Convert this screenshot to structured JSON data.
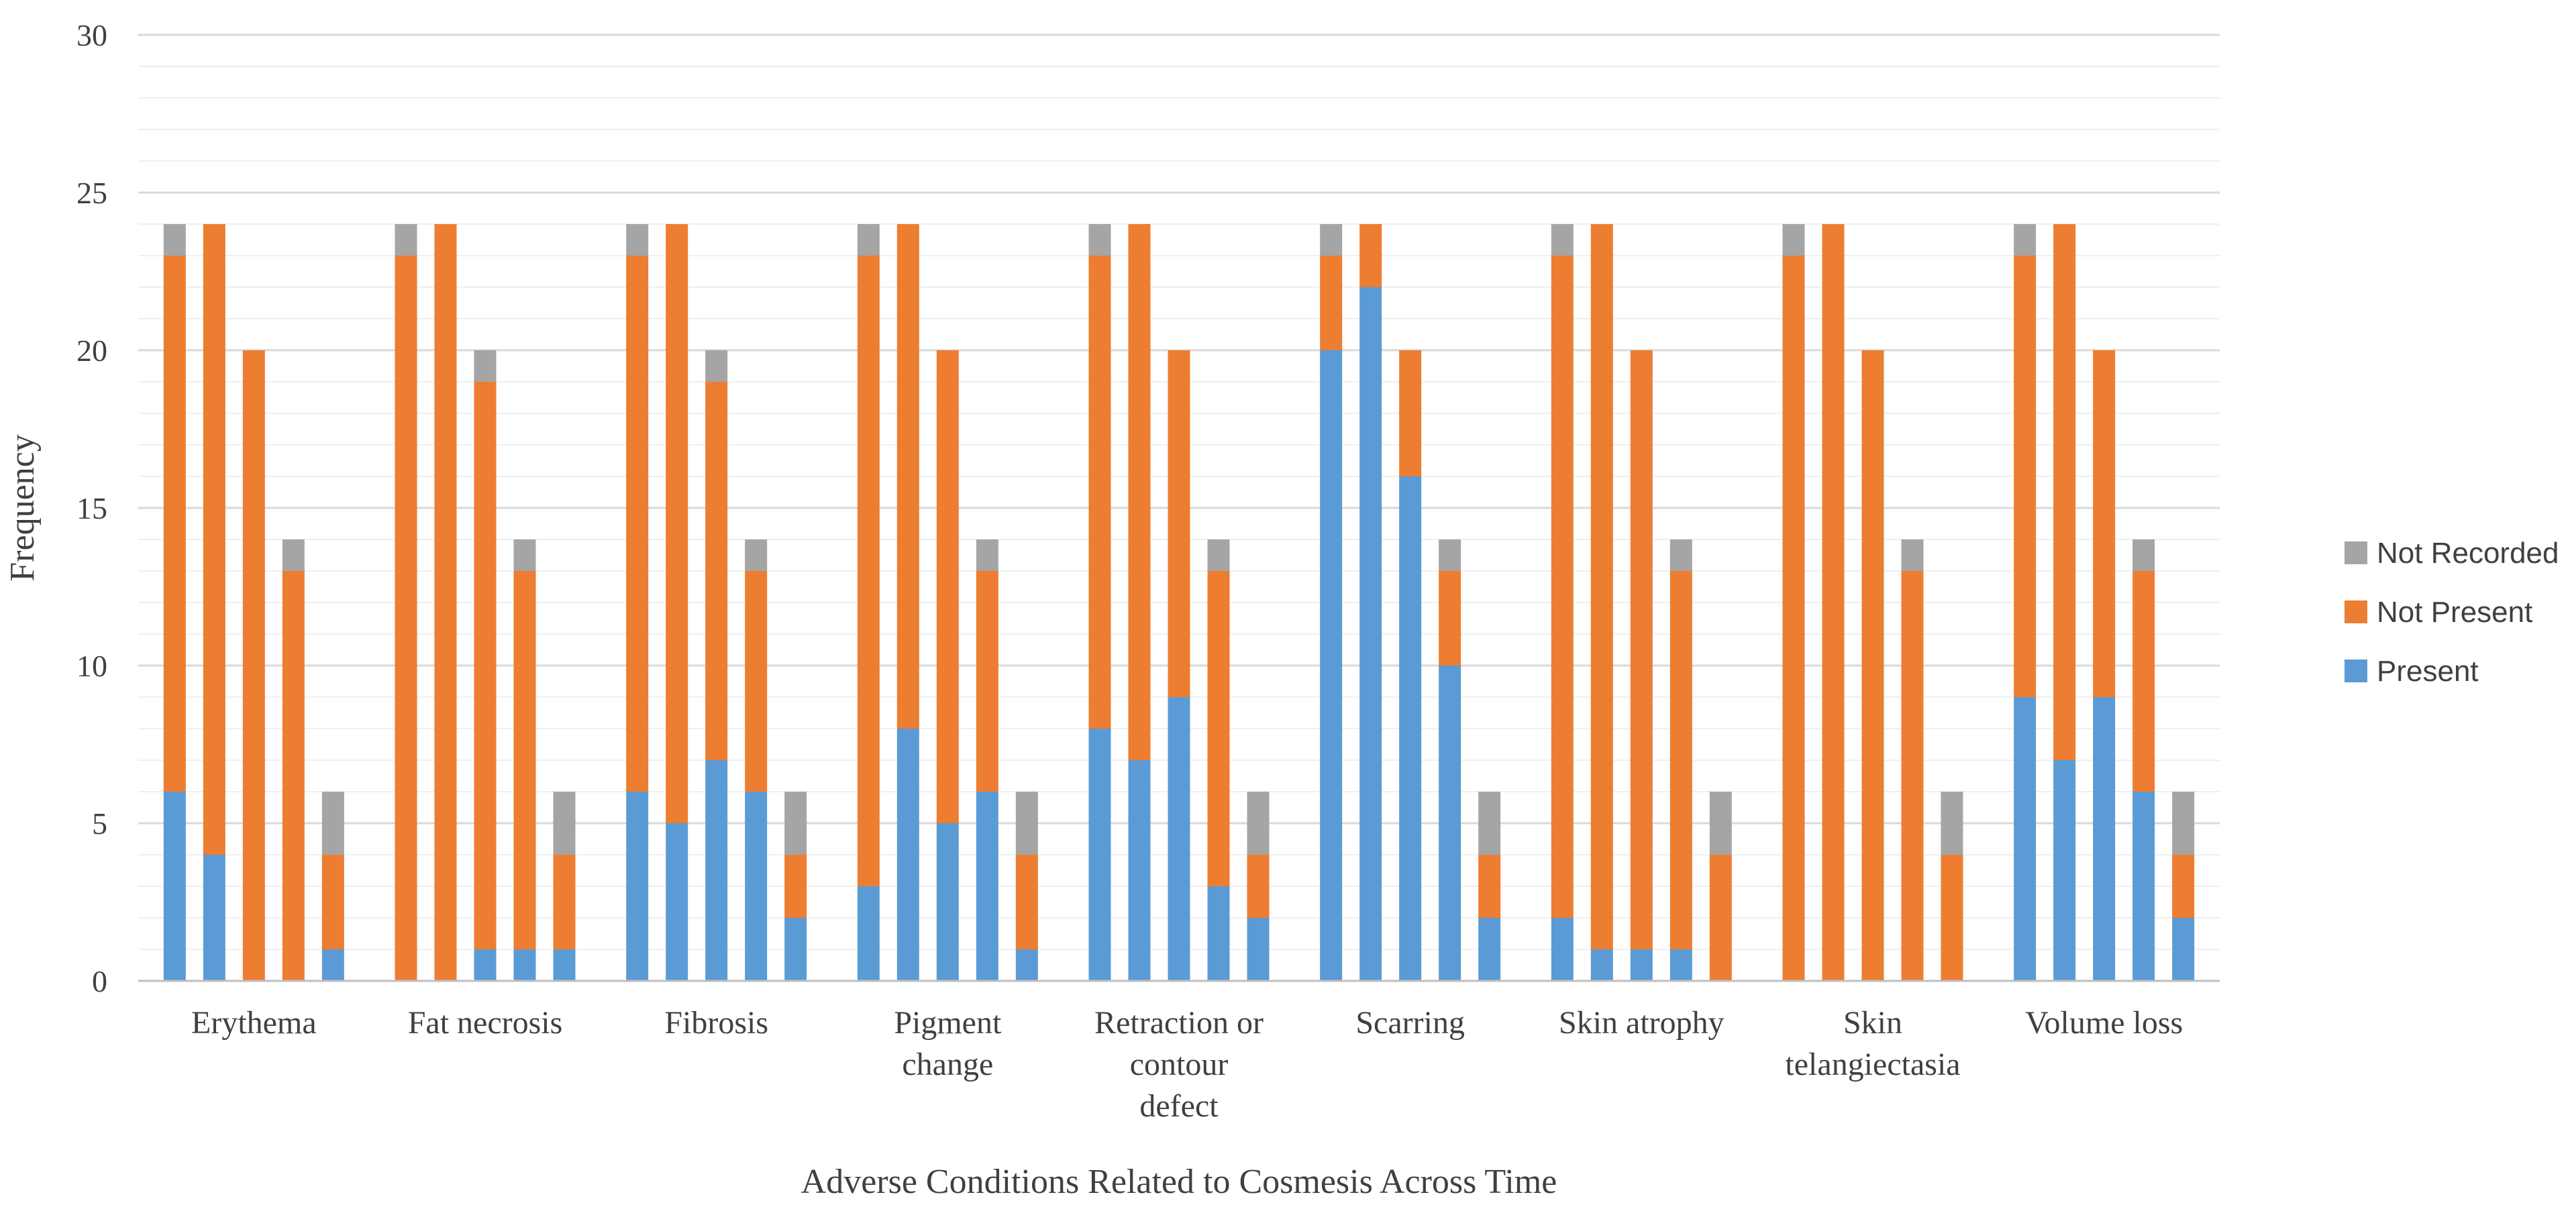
{
  "chart_data": {
    "type": "bar",
    "stacked": true,
    "title": "",
    "xlabel": "Adverse Conditions Related to Cosmesis Across Time",
    "ylabel": "Frequency",
    "ylim": [
      0,
      30
    ],
    "yticks": [
      0,
      5,
      10,
      15,
      20,
      25,
      30
    ],
    "grid": true,
    "legend_position": "right",
    "categories": [
      {
        "label": [
          "Erythema"
        ],
        "bars": [
          [
            6,
            17,
            1
          ],
          [
            4,
            20,
            0
          ],
          [
            0,
            20,
            0
          ],
          [
            0,
            13,
            1
          ],
          [
            1,
            3,
            2
          ]
        ]
      },
      {
        "label": [
          "Fat necrosis"
        ],
        "bars": [
          [
            0,
            23,
            1
          ],
          [
            0,
            24,
            0
          ],
          [
            1,
            18,
            1
          ],
          [
            1,
            12,
            1
          ],
          [
            1,
            3,
            2
          ]
        ]
      },
      {
        "label": [
          "Fibrosis"
        ],
        "bars": [
          [
            6,
            17,
            1
          ],
          [
            5,
            19,
            0
          ],
          [
            7,
            12,
            1
          ],
          [
            6,
            7,
            1
          ],
          [
            2,
            2,
            2
          ]
        ]
      },
      {
        "label": [
          "Pigment",
          "change"
        ],
        "bars": [
          [
            3,
            20,
            1
          ],
          [
            8,
            16,
            0
          ],
          [
            5,
            15,
            0
          ],
          [
            6,
            7,
            1
          ],
          [
            1,
            3,
            2
          ]
        ]
      },
      {
        "label": [
          "Retraction or",
          "contour",
          "defect"
        ],
        "bars": [
          [
            8,
            15,
            1
          ],
          [
            7,
            17,
            0
          ],
          [
            9,
            11,
            0
          ],
          [
            3,
            10,
            1
          ],
          [
            2,
            2,
            2
          ]
        ]
      },
      {
        "label": [
          "Scarring"
        ],
        "bars": [
          [
            20,
            3,
            1
          ],
          [
            22,
            2,
            0
          ],
          [
            16,
            4,
            0
          ],
          [
            10,
            3,
            1
          ],
          [
            2,
            2,
            2
          ]
        ]
      },
      {
        "label": [
          "Skin atrophy"
        ],
        "bars": [
          [
            2,
            21,
            1
          ],
          [
            1,
            23,
            0
          ],
          [
            1,
            19,
            0
          ],
          [
            1,
            12,
            1
          ],
          [
            0,
            4,
            2
          ]
        ]
      },
      {
        "label": [
          "Skin",
          "telangiectasia"
        ],
        "bars": [
          [
            0,
            23,
            1
          ],
          [
            0,
            24,
            0
          ],
          [
            0,
            20,
            0
          ],
          [
            0,
            13,
            1
          ],
          [
            0,
            4,
            2
          ]
        ]
      },
      {
        "label": [
          "Volume loss"
        ],
        "bars": [
          [
            9,
            14,
            1
          ],
          [
            7,
            17,
            0
          ],
          [
            9,
            11,
            0
          ],
          [
            6,
            7,
            1
          ],
          [
            2,
            2,
            2
          ]
        ]
      }
    ],
    "series": [
      {
        "name": "Present",
        "color": "#5b9bd5"
      },
      {
        "name": "Not Present",
        "color": "#ed7d31"
      },
      {
        "name": "Not Recorded",
        "color": "#a5a5a5"
      }
    ],
    "legend_order": [
      "Not Recorded",
      "Not Present",
      "Present"
    ]
  }
}
